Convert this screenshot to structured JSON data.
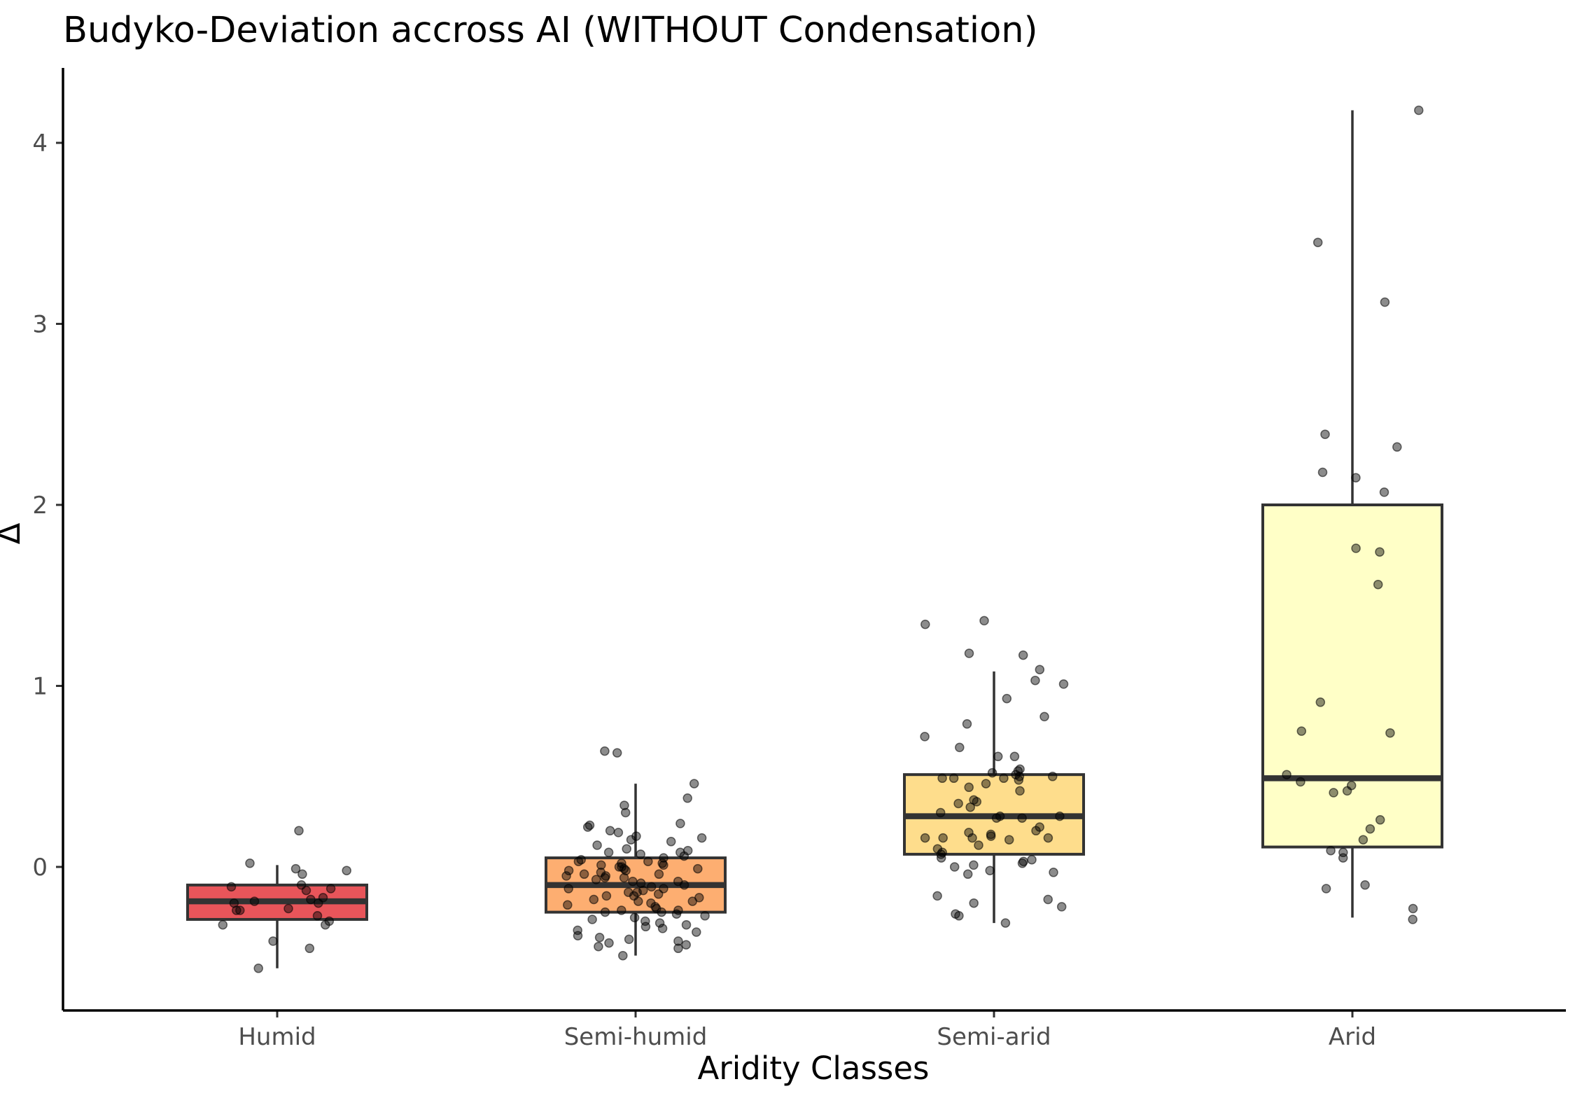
{
  "chart_data": {
    "type": "boxplot",
    "title": "Budyko-Deviation accross AI (WITHOUT Condensation)",
    "xlabel": "Aridity Classes",
    "ylabel": "Δ",
    "ylim": [
      -0.8,
      4.4
    ],
    "yticks": [
      0,
      1,
      2,
      3,
      4
    ],
    "grid": false,
    "legend": "none",
    "categories": [
      "Humid",
      "Semi-humid",
      "Semi-arid",
      "Arid"
    ],
    "colors": [
      "#e8555a",
      "#fdae71",
      "#fedd8c",
      "#ffffc7"
    ],
    "boxes": [
      {
        "category": "Humid",
        "whisker_low": -0.56,
        "q1": -0.29,
        "median": -0.19,
        "q3": -0.1,
        "whisker_high": 0.01
      },
      {
        "category": "Semi-humid",
        "whisker_low": -0.49,
        "q1": -0.25,
        "median": -0.1,
        "q3": 0.05,
        "whisker_high": 0.46
      },
      {
        "category": "Semi-arid",
        "whisker_low": -0.31,
        "q1": 0.07,
        "median": 0.28,
        "q3": 0.51,
        "whisker_high": 1.08
      },
      {
        "category": "Arid",
        "whisker_low": -0.28,
        "q1": 0.11,
        "median": 0.49,
        "q3": 2.0,
        "whisker_high": 4.18
      }
    ],
    "points": [
      {
        "category": "Humid",
        "values": [
          0.2,
          0.02,
          -0.01,
          -0.02,
          -0.04,
          -0.1,
          -0.11,
          -0.12,
          -0.13,
          -0.17,
          -0.18,
          -0.19,
          -0.2,
          -0.2,
          -0.23,
          -0.24,
          -0.24,
          -0.27,
          -0.3,
          -0.32,
          -0.32,
          -0.41,
          -0.45,
          -0.56
        ]
      },
      {
        "category": "Semi-humid",
        "values": [
          0.64,
          0.63,
          0.46,
          0.38,
          0.34,
          0.3,
          0.24,
          0.23,
          0.22,
          0.2,
          0.19,
          0.17,
          0.16,
          0.15,
          0.14,
          0.12,
          0.1,
          0.09,
          0.08,
          0.08,
          0.07,
          0.06,
          0.05,
          0.04,
          0.03,
          0.03,
          0.02,
          0.02,
          0.01,
          0.01,
          0.0,
          0.0,
          -0.01,
          -0.01,
          -0.02,
          -0.02,
          -0.03,
          -0.04,
          -0.04,
          -0.05,
          -0.05,
          -0.06,
          -0.06,
          -0.07,
          -0.08,
          -0.08,
          -0.09,
          -0.1,
          -0.11,
          -0.12,
          -0.12,
          -0.13,
          -0.14,
          -0.14,
          -0.15,
          -0.16,
          -0.16,
          -0.17,
          -0.18,
          -0.19,
          -0.19,
          -0.2,
          -0.21,
          -0.22,
          -0.23,
          -0.24,
          -0.24,
          -0.25,
          -0.25,
          -0.26,
          -0.27,
          -0.28,
          -0.29,
          -0.3,
          -0.31,
          -0.32,
          -0.33,
          -0.34,
          -0.35,
          -0.36,
          -0.38,
          -0.39,
          -0.4,
          -0.41,
          -0.42,
          -0.43,
          -0.44,
          -0.45,
          -0.49
        ]
      },
      {
        "category": "Semi-arid",
        "values": [
          1.36,
          1.34,
          1.18,
          1.17,
          1.09,
          1.03,
          1.01,
          0.93,
          0.83,
          0.79,
          0.72,
          0.66,
          0.61,
          0.61,
          0.54,
          0.53,
          0.52,
          0.51,
          0.5,
          0.5,
          0.49,
          0.49,
          0.49,
          0.48,
          0.46,
          0.44,
          0.42,
          0.37,
          0.36,
          0.35,
          0.33,
          0.3,
          0.28,
          0.28,
          0.27,
          0.27,
          0.22,
          0.2,
          0.19,
          0.18,
          0.17,
          0.16,
          0.16,
          0.16,
          0.16,
          0.15,
          0.12,
          0.1,
          0.08,
          0.07,
          0.05,
          0.04,
          0.03,
          0.02,
          0.01,
          0.0,
          -0.02,
          -0.03,
          -0.04,
          -0.16,
          -0.18,
          -0.2,
          -0.22,
          -0.26,
          -0.27,
          -0.31
        ]
      },
      {
        "category": "Arid",
        "values": [
          4.18,
          3.45,
          3.12,
          2.39,
          2.32,
          2.18,
          2.15,
          2.07,
          1.76,
          1.74,
          1.56,
          0.91,
          0.75,
          0.74,
          0.51,
          0.47,
          0.45,
          0.42,
          0.41,
          0.26,
          0.21,
          0.15,
          0.09,
          0.08,
          0.05,
          -0.1,
          -0.12,
          -0.23,
          -0.29
        ]
      }
    ]
  }
}
